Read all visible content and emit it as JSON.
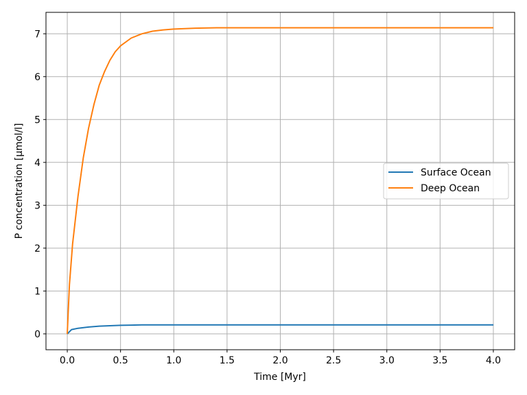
{
  "chart_data": {
    "type": "line",
    "title": "",
    "xlabel": "Time [Myr]",
    "ylabel": "P concentration [μmol/l]",
    "xlim": [
      -0.2,
      4.2
    ],
    "ylim": [
      -0.37,
      7.5
    ],
    "xticks": [
      0.0,
      0.5,
      1.0,
      1.5,
      2.0,
      2.5,
      3.0,
      3.5,
      4.0
    ],
    "xtick_labels": [
      "0.0",
      "0.5",
      "1.0",
      "1.5",
      "2.0",
      "2.5",
      "3.0",
      "3.5",
      "4.0"
    ],
    "yticks": [
      0,
      1,
      2,
      3,
      4,
      5,
      6,
      7
    ],
    "ytick_labels": [
      "0",
      "1",
      "2",
      "3",
      "4",
      "5",
      "6",
      "7"
    ],
    "grid": true,
    "legend_position": "center-right",
    "series": [
      {
        "name": "Surface Ocean",
        "color": "#1f77b4",
        "x": [
          0.0,
          0.04,
          0.1,
          0.2,
          0.3,
          0.4,
          0.5,
          0.6,
          0.7,
          0.8,
          1.0,
          1.2,
          1.5,
          2.0,
          2.5,
          3.0,
          3.5,
          4.0
        ],
        "y": [
          0.0,
          0.1,
          0.13,
          0.16,
          0.18,
          0.19,
          0.2,
          0.205,
          0.21,
          0.21,
          0.21,
          0.21,
          0.21,
          0.21,
          0.21,
          0.21,
          0.21,
          0.21
        ]
      },
      {
        "name": "Deep Ocean",
        "color": "#ff7f0e",
        "x": [
          0.0,
          0.02,
          0.05,
          0.1,
          0.15,
          0.2,
          0.25,
          0.3,
          0.35,
          0.4,
          0.45,
          0.5,
          0.6,
          0.7,
          0.8,
          0.9,
          1.0,
          1.2,
          1.4,
          1.6,
          1.8,
          2.0,
          2.5,
          3.0,
          3.5,
          4.0
        ],
        "y": [
          0.0,
          1.15,
          2.1,
          3.2,
          4.1,
          4.8,
          5.35,
          5.8,
          6.12,
          6.38,
          6.58,
          6.72,
          6.9,
          7.0,
          7.06,
          7.09,
          7.11,
          7.13,
          7.14,
          7.14,
          7.14,
          7.14,
          7.14,
          7.14,
          7.14,
          7.14
        ]
      }
    ]
  }
}
